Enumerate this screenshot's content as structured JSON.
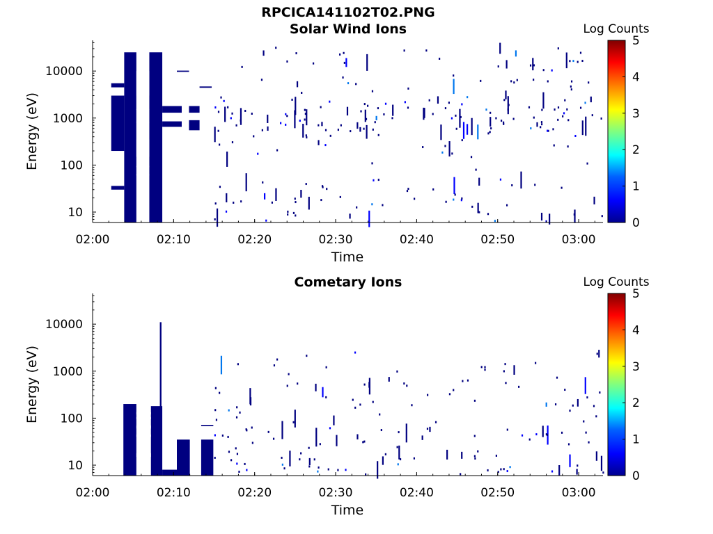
{
  "figure_title": "RPCICA141102T02.PNG",
  "colors": {
    "colorbar": [
      "#00008f",
      "#0000ff",
      "#0080ff",
      "#00ffff",
      "#80ff80",
      "#ffff00",
      "#ff8000",
      "#ff0000",
      "#800000"
    ],
    "data_main": "#000080",
    "data_light": "#0000ff",
    "data_cyan": "#0077ee"
  },
  "chart_data": [
    {
      "type": "heatmap",
      "title": "Solar Wind Ions",
      "xlabel": "Time",
      "ylabel": "Energy (eV)",
      "yscale": "log",
      "ylim": [
        6,
        45000
      ],
      "xlim": [
        "02:00",
        "03:03"
      ],
      "x_ticks": [
        "02:00",
        "02:10",
        "02:20",
        "02:30",
        "02:40",
        "02:50",
        "03:00"
      ],
      "y_ticks": [
        "10",
        "100",
        "1000",
        "10000"
      ],
      "colorbar": {
        "label": "Log Counts",
        "ticks": [
          "0",
          "1",
          "2",
          "3",
          "4",
          "5"
        ],
        "range": [
          0,
          5
        ]
      },
      "blocks": [
        {
          "t0": 3.9,
          "t1": 5.4,
          "e0": 6,
          "e1": 25000,
          "c": 0
        },
        {
          "t0": 7.0,
          "t1": 8.6,
          "e0": 6,
          "e1": 25000,
          "c": 0
        },
        {
          "t0": 2.3,
          "t1": 3.9,
          "e0": 200,
          "e1": 3000,
          "c": 0
        },
        {
          "t0": 5.4,
          "t1": 7.0,
          "e0": 350,
          "e1": 3000,
          "c": 0
        },
        {
          "t0": 2.3,
          "t1": 3.9,
          "e0": 30,
          "e1": 36,
          "c": 0
        },
        {
          "t0": 2.3,
          "t1": 3.9,
          "e0": 4500,
          "e1": 5500,
          "c": 0
        },
        {
          "t0": 8.6,
          "t1": 11.0,
          "e0": 1300,
          "e1": 1800,
          "c": 0
        },
        {
          "t0": 8.6,
          "t1": 11.0,
          "e0": 650,
          "e1": 850,
          "c": 0
        },
        {
          "t0": 11.9,
          "t1": 13.2,
          "e0": 550,
          "e1": 900,
          "c": 0
        },
        {
          "t0": 11.9,
          "t1": 13.2,
          "e0": 1300,
          "e1": 1800,
          "c": 0
        },
        {
          "t0": 10.4,
          "t1": 11.9,
          "e0": 9600,
          "e1": 10200,
          "c": 0
        },
        {
          "t0": 13.2,
          "t1": 14.7,
          "e0": 4400,
          "e1": 4700,
          "c": 0
        }
      ],
      "scatter_seed": 7
    },
    {
      "type": "heatmap",
      "title": "Cometary Ions",
      "xlabel": "Time",
      "ylabel": "Energy (eV)",
      "yscale": "log",
      "ylim": [
        6,
        45000
      ],
      "xlim": [
        "02:00",
        "03:03"
      ],
      "x_ticks": [
        "02:00",
        "02:10",
        "02:20",
        "02:30",
        "02:40",
        "02:50",
        "03:00"
      ],
      "y_ticks": [
        "10",
        "100",
        "1000",
        "10000"
      ],
      "colorbar": {
        "label": "Log Counts",
        "ticks": [
          "0",
          "1",
          "2",
          "3",
          "4",
          "5"
        ],
        "range": [
          0,
          5
        ]
      },
      "blocks": [
        {
          "t0": 3.8,
          "t1": 5.4,
          "e0": 6,
          "e1": 200,
          "c": 0
        },
        {
          "t0": 7.2,
          "t1": 8.6,
          "e0": 6,
          "e1": 180,
          "c": 0
        },
        {
          "t0": 8.6,
          "t1": 10.5,
          "e0": 6,
          "e1": 8,
          "c": 0
        },
        {
          "t0": 10.4,
          "t1": 12.0,
          "e0": 6,
          "e1": 35,
          "c": 0
        },
        {
          "t0": 13.4,
          "t1": 14.9,
          "e0": 6,
          "e1": 35,
          "c": 0
        },
        {
          "t0": 8.3,
          "t1": 8.5,
          "e0": 8,
          "e1": 11000,
          "c": 0
        },
        {
          "t0": 13.4,
          "t1": 14.9,
          "e0": 68,
          "e1": 72,
          "c": 0
        }
      ],
      "scatter_seed": 19
    }
  ]
}
